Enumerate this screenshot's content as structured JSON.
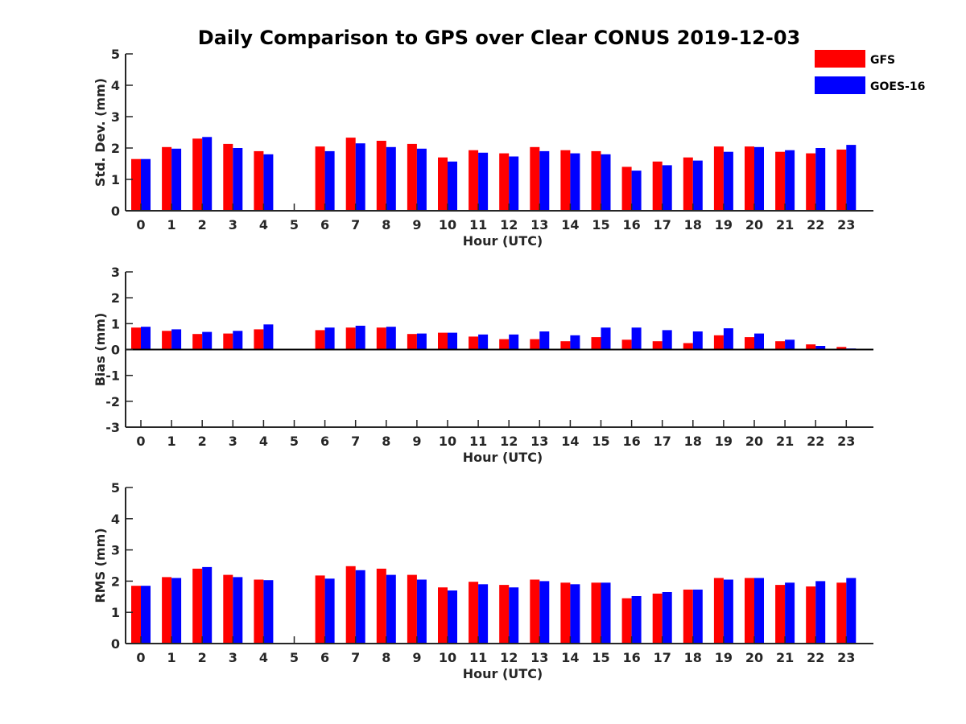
{
  "chart_data": {
    "title": "Daily Comparison to GPS over Clear CONUS 2019-12-03",
    "legend": {
      "position": "top-right",
      "entries": [
        {
          "name": "GFS",
          "color": "#ff0000"
        },
        {
          "name": "GOES-16",
          "color": "#0000ff"
        }
      ]
    },
    "panels": [
      {
        "type": "bar",
        "id": "std",
        "xlabel": "Hour (UTC)",
        "ylabel": "Std. Dev. (mm)",
        "ylim": [
          0,
          5
        ],
        "yticks": [
          "0",
          "1",
          "2",
          "3",
          "4",
          "5"
        ],
        "categories": [
          "0",
          "1",
          "2",
          "3",
          "4",
          "5",
          "6",
          "7",
          "8",
          "9",
          "10",
          "11",
          "12",
          "13",
          "14",
          "15",
          "16",
          "17",
          "18",
          "19",
          "20",
          "21",
          "22",
          "23"
        ],
        "series": [
          {
            "name": "GFS",
            "color": "#ff0000",
            "values": [
              1.65,
              2.03,
              2.3,
              2.13,
              1.9,
              null,
              2.05,
              2.33,
              2.23,
              2.13,
              1.7,
              1.93,
              1.83,
              2.03,
              1.93,
              1.9,
              1.4,
              1.57,
              1.7,
              2.05,
              2.05,
              1.88,
              1.83,
              1.95
            ]
          },
          {
            "name": "GOES-16",
            "color": "#0000ff",
            "values": [
              1.65,
              1.98,
              2.35,
              2.0,
              1.8,
              null,
              1.9,
              2.15,
              2.03,
              1.98,
              1.57,
              1.85,
              1.73,
              1.9,
              1.83,
              1.8,
              1.28,
              1.45,
              1.6,
              1.88,
              2.03,
              1.93,
              2.0,
              2.1
            ]
          }
        ]
      },
      {
        "type": "bar",
        "id": "bias",
        "xlabel": "Hour (UTC)",
        "ylabel": "Bias (mm)",
        "ylim": [
          -3,
          3
        ],
        "yticks": [
          "-3",
          "-2",
          "-1",
          "0",
          "1",
          "2",
          "3"
        ],
        "categories": [
          "0",
          "1",
          "2",
          "3",
          "4",
          "5",
          "6",
          "7",
          "8",
          "9",
          "10",
          "11",
          "12",
          "13",
          "14",
          "15",
          "16",
          "17",
          "18",
          "19",
          "20",
          "21",
          "22",
          "23"
        ],
        "series": [
          {
            "name": "GFS",
            "color": "#ff0000",
            "values": [
              0.85,
              0.72,
              0.6,
              0.62,
              0.78,
              null,
              0.75,
              0.85,
              0.85,
              0.6,
              0.65,
              0.5,
              0.4,
              0.4,
              0.32,
              0.48,
              0.38,
              0.32,
              0.25,
              0.55,
              0.48,
              0.32,
              0.2,
              0.1
            ]
          },
          {
            "name": "GOES-16",
            "color": "#0000ff",
            "values": [
              0.88,
              0.78,
              0.68,
              0.72,
              0.97,
              null,
              0.85,
              0.92,
              0.88,
              0.62,
              0.65,
              0.58,
              0.58,
              0.7,
              0.55,
              0.85,
              0.85,
              0.75,
              0.7,
              0.82,
              0.62,
              0.38,
              0.14,
              0.04
            ]
          }
        ]
      },
      {
        "type": "bar",
        "id": "rms",
        "xlabel": "Hour (UTC)",
        "ylabel": "RMS (mm)",
        "ylim": [
          0,
          5
        ],
        "yticks": [
          "0",
          "1",
          "2",
          "3",
          "4",
          "5"
        ],
        "categories": [
          "0",
          "1",
          "2",
          "3",
          "4",
          "5",
          "6",
          "7",
          "8",
          "9",
          "10",
          "11",
          "12",
          "13",
          "14",
          "15",
          "16",
          "17",
          "18",
          "19",
          "20",
          "21",
          "22",
          "23"
        ],
        "series": [
          {
            "name": "GFS",
            "color": "#ff0000",
            "values": [
              1.85,
              2.13,
              2.4,
              2.2,
              2.05,
              null,
              2.18,
              2.48,
              2.4,
              2.2,
              1.8,
              1.98,
              1.88,
              2.05,
              1.95,
              1.95,
              1.45,
              1.6,
              1.73,
              2.1,
              2.1,
              1.88,
              1.83,
              1.95
            ]
          },
          {
            "name": "GOES-16",
            "color": "#0000ff",
            "values": [
              1.85,
              2.1,
              2.45,
              2.13,
              2.03,
              null,
              2.08,
              2.35,
              2.2,
              2.05,
              1.7,
              1.9,
              1.8,
              2.0,
              1.9,
              1.95,
              1.52,
              1.65,
              1.73,
              2.05,
              2.1,
              1.95,
              2.0,
              2.1
            ]
          }
        ]
      }
    ]
  }
}
